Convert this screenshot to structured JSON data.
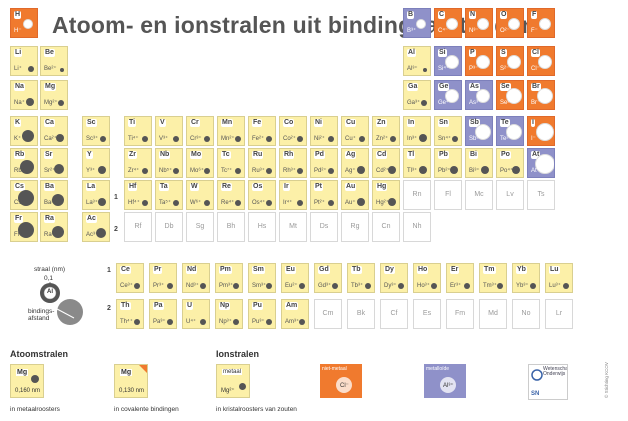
{
  "title": "Atoom- en ionstralen uit bindingsafstanden",
  "colors": {
    "cell": "#fcf0a8",
    "nonmetal": "#f07a2e",
    "metalloid": "#8f91c9",
    "empty": "#ffffff"
  },
  "main_rows": [
    [
      {
        "sym": "H",
        "ion": "H⁻",
        "type": "nonmetal",
        "col": 0,
        "r": 1
      },
      {
        "sym": "B",
        "ion": "B³⁺",
        "type": "metalloid",
        "col": 12,
        "r": 1
      },
      {
        "sym": "C",
        "ion": "C⁴⁻",
        "type": "nonmetal",
        "col": 13,
        "r": 2
      },
      {
        "sym": "N",
        "ion": "N³⁻",
        "type": "nonmetal",
        "col": 14,
        "r": 2
      },
      {
        "sym": "O",
        "ion": "O²⁻",
        "type": "nonmetal",
        "col": 15,
        "r": 2
      },
      {
        "sym": "F",
        "ion": "F⁻",
        "type": "nonmetal",
        "col": 16,
        "r": 2
      }
    ],
    [
      {
        "sym": "Li",
        "ion": "Li⁺",
        "type": "metal",
        "col": 0,
        "r": 3
      },
      {
        "sym": "Be",
        "ion": "Be²⁺",
        "type": "metal",
        "col": 1,
        "r": 2
      },
      {
        "sym": "Al",
        "ion": "Al³⁺",
        "type": "metal",
        "col": 12,
        "r": 2
      },
      {
        "sym": "Si",
        "ion": "Si⁴⁺",
        "type": "metalloid",
        "col": 13,
        "r": 3
      },
      {
        "sym": "P",
        "ion": "P³⁻",
        "type": "nonmetal",
        "col": 14,
        "r": 3
      },
      {
        "sym": "S",
        "ion": "S²⁻",
        "type": "nonmetal",
        "col": 15,
        "r": 3
      },
      {
        "sym": "Cl",
        "ion": "Cl⁻",
        "type": "nonmetal",
        "col": 16,
        "r": 3
      }
    ],
    [
      {
        "sym": "Na",
        "ion": "Na⁺",
        "type": "metal",
        "col": 0,
        "r": 4
      },
      {
        "sym": "Mg",
        "ion": "Mg²⁺",
        "type": "metal",
        "col": 1,
        "r": 3
      },
      {
        "sym": "Ga",
        "ion": "Ga³⁺",
        "type": "metal",
        "col": 12,
        "r": 3
      },
      {
        "sym": "Ge",
        "ion": "Ge⁴⁺",
        "type": "metalloid",
        "col": 13,
        "r": 3
      },
      {
        "sym": "As",
        "ion": "As³⁻",
        "type": "metalloid",
        "col": 14,
        "r": 3
      },
      {
        "sym": "Se",
        "ion": "Se²⁻",
        "type": "nonmetal",
        "col": 15,
        "r": 4
      },
      {
        "sym": "Br",
        "ion": "Br⁻",
        "type": "nonmetal",
        "col": 16,
        "r": 4
      }
    ],
    [
      {
        "sym": "K",
        "ion": "K⁺",
        "type": "metal",
        "col": 0,
        "r": 6
      },
      {
        "sym": "Ca",
        "ion": "Ca²⁺",
        "type": "metal",
        "col": 1,
        "r": 4
      },
      {
        "sym": "Sc",
        "ion": "Sc³⁺",
        "type": "metal",
        "col": 2,
        "r": 3
      },
      {
        "sym": "Ti",
        "ion": "Ti⁴⁺",
        "type": "metal",
        "col": 3,
        "r": 3
      },
      {
        "sym": "V",
        "ion": "V³⁺",
        "type": "metal",
        "col": 4,
        "r": 3
      },
      {
        "sym": "Cr",
        "ion": "Cr³⁺",
        "type": "metal",
        "col": 5,
        "r": 3
      },
      {
        "sym": "Mn",
        "ion": "Mn²⁺",
        "type": "metal",
        "col": 6,
        "r": 3
      },
      {
        "sym": "Fe",
        "ion": "Fe²⁺",
        "type": "metal",
        "col": 7,
        "r": 3
      },
      {
        "sym": "Co",
        "ion": "Co²⁺",
        "type": "metal",
        "col": 8,
        "r": 3
      },
      {
        "sym": "Ni",
        "ion": "Ni²⁺",
        "type": "metal",
        "col": 9,
        "r": 3
      },
      {
        "sym": "Cu",
        "ion": "Cu⁺",
        "type": "metal",
        "col": 10,
        "r": 3
      },
      {
        "sym": "Zn",
        "ion": "Zn²⁺",
        "type": "metal",
        "col": 11,
        "r": 3
      },
      {
        "sym": "In",
        "ion": "In³⁺",
        "type": "metal",
        "col": 12,
        "r": 4
      },
      {
        "sym": "Sn",
        "ion": "Sn⁴⁺",
        "type": "metal",
        "col": 13,
        "r": 3
      },
      {
        "sym": "Sb",
        "ion": "Sb³⁻",
        "type": "metalloid",
        "col": 14,
        "r": 4
      },
      {
        "sym": "Te",
        "ion": "Te²⁻",
        "type": "metalloid",
        "col": 15,
        "r": 4
      },
      {
        "sym": "I",
        "ion": "I⁻",
        "type": "nonmetal",
        "col": 16,
        "r": 5
      }
    ],
    [
      {
        "sym": "Rb",
        "ion": "Rb⁺",
        "type": "metal",
        "col": 0,
        "r": 7
      },
      {
        "sym": "Sr",
        "ion": "Sr²⁺",
        "type": "metal",
        "col": 1,
        "r": 5
      },
      {
        "sym": "Y",
        "ion": "Y³⁺",
        "type": "metal",
        "col": 2,
        "r": 4
      },
      {
        "sym": "Zr",
        "ion": "Zr⁴⁺",
        "type": "metal",
        "col": 3,
        "r": 3
      },
      {
        "sym": "Nb",
        "ion": "Nb⁵⁺",
        "type": "metal",
        "col": 4,
        "r": 3
      },
      {
        "sym": "Mo",
        "ion": "Mo⁶⁺",
        "type": "metal",
        "col": 5,
        "r": 3
      },
      {
        "sym": "Tc",
        "ion": "Tc⁷⁺",
        "type": "metal",
        "col": 6,
        "r": 3
      },
      {
        "sym": "Ru",
        "ion": "Ru³⁺",
        "type": "metal",
        "col": 7,
        "r": 3
      },
      {
        "sym": "Rh",
        "ion": "Rh³⁺",
        "type": "metal",
        "col": 8,
        "r": 3
      },
      {
        "sym": "Pd",
        "ion": "Pd²⁺",
        "type": "metal",
        "col": 9,
        "r": 3
      },
      {
        "sym": "Ag",
        "ion": "Ag⁺",
        "type": "metal",
        "col": 10,
        "r": 4
      },
      {
        "sym": "Cd",
        "ion": "Cd²⁺",
        "type": "metal",
        "col": 11,
        "r": 4
      },
      {
        "sym": "Tl",
        "ion": "Tl³⁺",
        "type": "metal",
        "col": 12,
        "r": 4
      },
      {
        "sym": "Pb",
        "ion": "Pb²⁺",
        "type": "metal",
        "col": 13,
        "r": 4
      },
      {
        "sym": "Bi",
        "ion": "Bi³⁺",
        "type": "metal",
        "col": 14,
        "r": 4
      },
      {
        "sym": "Po",
        "ion": "Po⁴⁺",
        "type": "metal",
        "col": 15,
        "r": 4
      },
      {
        "sym": "At",
        "ion": "At⁻",
        "type": "metalloid",
        "col": 16,
        "r": 6
      }
    ],
    [
      {
        "sym": "Cs",
        "ion": "Cs⁺",
        "type": "metal",
        "col": 0,
        "r": 8
      },
      {
        "sym": "Ba",
        "ion": "Ba²⁺",
        "type": "metal",
        "col": 1,
        "r": 6
      },
      {
        "sym": "La",
        "ion": "La³⁺",
        "type": "metal",
        "col": 2,
        "r": 4
      },
      {
        "sym": "Hf",
        "ion": "Hf⁴⁺",
        "type": "metal",
        "col": 3,
        "r": 3
      },
      {
        "sym": "Ta",
        "ion": "Ta⁵⁺",
        "type": "metal",
        "col": 4,
        "r": 3
      },
      {
        "sym": "W",
        "ion": "W⁶⁺",
        "type": "metal",
        "col": 5,
        "r": 3
      },
      {
        "sym": "Re",
        "ion": "Re⁴⁺",
        "type": "metal",
        "col": 6,
        "r": 3
      },
      {
        "sym": "Os",
        "ion": "Os⁴⁺",
        "type": "metal",
        "col": 7,
        "r": 3
      },
      {
        "sym": "Ir",
        "ion": "Ir⁴⁺",
        "type": "metal",
        "col": 8,
        "r": 3
      },
      {
        "sym": "Pt",
        "ion": "Pt²⁺",
        "type": "metal",
        "col": 9,
        "r": 3
      },
      {
        "sym": "Au",
        "ion": "Au⁺",
        "type": "metal",
        "col": 10,
        "r": 4
      },
      {
        "sym": "Hg",
        "ion": "Hg²⁺",
        "type": "metal",
        "col": 11,
        "r": 4
      },
      {
        "sym": "Rn",
        "ion": "",
        "type": "empty",
        "col": 12,
        "r": 0
      },
      {
        "sym": "Fl",
        "ion": "",
        "type": "empty",
        "col": 13,
        "r": 0
      },
      {
        "sym": "Mc",
        "ion": "",
        "type": "empty",
        "col": 14,
        "r": 0
      },
      {
        "sym": "Lv",
        "ion": "",
        "type": "empty",
        "col": 15,
        "r": 0
      },
      {
        "sym": "Ts",
        "ion": "",
        "type": "empty",
        "col": 16,
        "r": 0
      }
    ],
    [
      {
        "sym": "Fr",
        "ion": "Fr⁺",
        "type": "metal",
        "col": 0,
        "r": 8
      },
      {
        "sym": "Ra",
        "ion": "Ra²⁺",
        "type": "metal",
        "col": 1,
        "r": 6
      },
      {
        "sym": "Ac",
        "ion": "Ac³⁺",
        "type": "metal",
        "col": 2,
        "r": 5
      },
      {
        "sym": "Rf",
        "ion": "",
        "type": "empty",
        "col": 3,
        "r": 0
      },
      {
        "sym": "Db",
        "ion": "",
        "type": "empty",
        "col": 4,
        "r": 0
      },
      {
        "sym": "Sg",
        "ion": "",
        "type": "empty",
        "col": 5,
        "r": 0
      },
      {
        "sym": "Bh",
        "ion": "",
        "type": "empty",
        "col": 6,
        "r": 0
      },
      {
        "sym": "Hs",
        "ion": "",
        "type": "empty",
        "col": 7,
        "r": 0
      },
      {
        "sym": "Mt",
        "ion": "",
        "type": "empty",
        "col": 8,
        "r": 0
      },
      {
        "sym": "Ds",
        "ion": "",
        "type": "empty",
        "col": 9,
        "r": 0
      },
      {
        "sym": "Rg",
        "ion": "",
        "type": "empty",
        "col": 10,
        "r": 0
      },
      {
        "sym": "Cn",
        "ion": "",
        "type": "empty",
        "col": 11,
        "r": 0
      },
      {
        "sym": "Nh",
        "ion": "",
        "type": "empty",
        "col": 12,
        "r": 0
      }
    ]
  ],
  "row_markers": [
    "1",
    "2"
  ],
  "lanthanides": [
    {
      "sym": "Ce",
      "ion": "Ce³⁺",
      "type": "metal"
    },
    {
      "sym": "Pr",
      "ion": "Pr³⁺",
      "type": "metal"
    },
    {
      "sym": "Nd",
      "ion": "Nd³⁺",
      "type": "metal"
    },
    {
      "sym": "Pm",
      "ion": "Pm³⁺",
      "type": "metal"
    },
    {
      "sym": "Sm",
      "ion": "Sm³⁺",
      "type": "metal"
    },
    {
      "sym": "Eu",
      "ion": "Eu²⁺",
      "type": "metal"
    },
    {
      "sym": "Gd",
      "ion": "Gd³⁺",
      "type": "metal"
    },
    {
      "sym": "Tb",
      "ion": "Tb³⁺",
      "type": "metal"
    },
    {
      "sym": "Dy",
      "ion": "Dy³⁺",
      "type": "metal"
    },
    {
      "sym": "Ho",
      "ion": "Ho³⁺",
      "type": "metal"
    },
    {
      "sym": "Er",
      "ion": "Er³⁺",
      "type": "metal"
    },
    {
      "sym": "Tm",
      "ion": "Tm³⁺",
      "type": "metal"
    },
    {
      "sym": "Yb",
      "ion": "Yb³⁺",
      "type": "metal"
    },
    {
      "sym": "Lu",
      "ion": "Lu³⁺",
      "type": "metal"
    }
  ],
  "actinides": [
    {
      "sym": "Th",
      "ion": "Th⁴⁺",
      "type": "metal"
    },
    {
      "sym": "Pa",
      "ion": "Pa³⁺",
      "type": "metal"
    },
    {
      "sym": "U",
      "ion": "U⁴⁺",
      "type": "metal"
    },
    {
      "sym": "Np",
      "ion": "Np³⁺",
      "type": "metal"
    },
    {
      "sym": "Pu",
      "ion": "Pu³⁺",
      "type": "metal"
    },
    {
      "sym": "Am",
      "ion": "Am³⁺",
      "type": "metal"
    },
    {
      "sym": "Cm",
      "ion": "",
      "type": "empty"
    },
    {
      "sym": "Bk",
      "ion": "",
      "type": "empty"
    },
    {
      "sym": "Cf",
      "ion": "",
      "type": "empty"
    },
    {
      "sym": "Es",
      "ion": "",
      "type": "empty"
    },
    {
      "sym": "Fm",
      "ion": "",
      "type": "empty"
    },
    {
      "sym": "Md",
      "ion": "",
      "type": "empty"
    },
    {
      "sym": "No",
      "ion": "",
      "type": "empty"
    },
    {
      "sym": "Lr",
      "ion": "",
      "type": "empty"
    }
  ],
  "diagram": {
    "straal_label": "straal (nm)",
    "straal_value": "0,1",
    "atom_symbol": "Al",
    "bindings_label": "bindings-",
    "afstand_label": "afstand"
  },
  "legend": {
    "atoom_header": "Atoomstralen",
    "ion_header": "Ionstralen",
    "metal_cell": {
      "sym": "Mg",
      "val": "0,160 nm",
      "caption": "in metaalroosters"
    },
    "covalent_cell": {
      "sym": "Mg",
      "val": "0,130 nm",
      "caption": "in covalente bindingen"
    },
    "ionic_cell": {
      "sym": "metaal",
      "ion": "Mg²⁺",
      "caption": "in kristalroosters van zouten"
    },
    "nonmetal_box": {
      "label": "niet-metaal",
      "ion": "Cl⁻"
    },
    "metalloid_box": {
      "label": "metalloïde",
      "ion": "Al³⁺"
    }
  },
  "logo": {
    "text": "Wetenschappelijk Onderwijs",
    "sub": "SN"
  },
  "credit": "© Stichting KCOV"
}
